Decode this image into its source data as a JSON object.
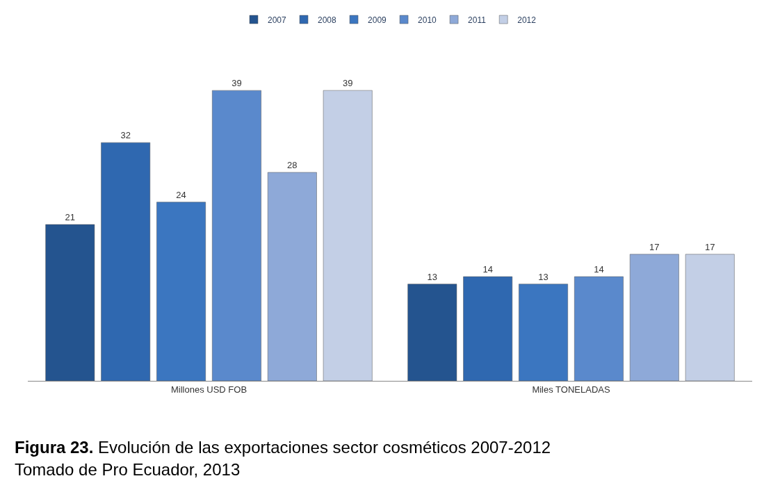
{
  "chart_data": {
    "type": "bar",
    "categories": [
      "Millones USD FOB",
      "Miles TONELADAS"
    ],
    "series": [
      {
        "name": "2007",
        "color": "#24548f",
        "values": [
          21,
          13
        ]
      },
      {
        "name": "2008",
        "color": "#2f68b0",
        "values": [
          32,
          14
        ]
      },
      {
        "name": "2009",
        "color": "#3b76c0",
        "values": [
          24,
          13
        ]
      },
      {
        "name": "2010",
        "color": "#5a89cc",
        "values": [
          39,
          14
        ]
      },
      {
        "name": "2011",
        "color": "#8ea9d8",
        "values": [
          28,
          17
        ]
      },
      {
        "name": "2012",
        "color": "#c3cfe6",
        "values": [
          39,
          17
        ]
      }
    ],
    "data_labels": true,
    "legend": "top",
    "annotations": [
      "Figura 23. Evolución de las exportaciones sector cosméticos 2007-2012",
      "Tomado de Pro Ecuador, 2013"
    ]
  }
}
